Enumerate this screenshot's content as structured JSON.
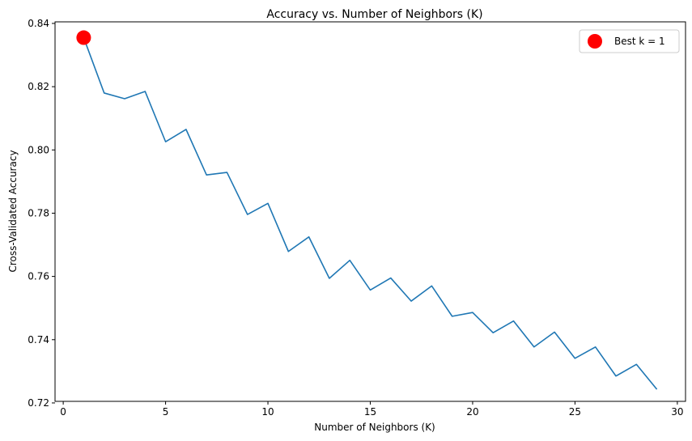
{
  "chart_data": {
    "type": "line",
    "title": "Accuracy vs. Number of Neighbors (K)",
    "xlabel": "Number of Neighbors (K)",
    "ylabel": "Cross-Validated Accuracy",
    "xlim": [
      -0.4,
      30.4
    ],
    "ylim": [
      0.7205,
      0.8405
    ],
    "xticks": [
      0,
      5,
      10,
      15,
      20,
      25,
      30
    ],
    "xtick_labels": [
      "0",
      "5",
      "10",
      "15",
      "20",
      "25",
      "30"
    ],
    "yticks": [
      0.72,
      0.74,
      0.76,
      0.78,
      0.8,
      0.82,
      0.84
    ],
    "ytick_labels": [
      "0.72",
      "0.74",
      "0.76",
      "0.78",
      "0.80",
      "0.82",
      "0.84"
    ],
    "grid": false,
    "legend_position": "top-right",
    "line_color": "#1f77b4",
    "series": [
      {
        "x": [
          1,
          2,
          3,
          4,
          5,
          6,
          7,
          8,
          9,
          10,
          11,
          12,
          13,
          14,
          15,
          16,
          17,
          18,
          19,
          20,
          21,
          22,
          23,
          24,
          25,
          26,
          27,
          28,
          29
        ],
        "values": [
          0.8355,
          0.818,
          0.8162,
          0.8185,
          0.8026,
          0.8065,
          0.7921,
          0.7929,
          0.7796,
          0.7831,
          0.7679,
          0.7725,
          0.7594,
          0.7651,
          0.7557,
          0.7595,
          0.7522,
          0.757,
          0.7474,
          0.7486,
          0.7422,
          0.7459,
          0.7377,
          0.7424,
          0.7341,
          0.7377,
          0.7285,
          0.7322,
          0.7243
        ]
      }
    ],
    "highlight": {
      "label": "Best k = 1",
      "x": 1,
      "y": 0.8355,
      "color": "#ff0000"
    }
  }
}
